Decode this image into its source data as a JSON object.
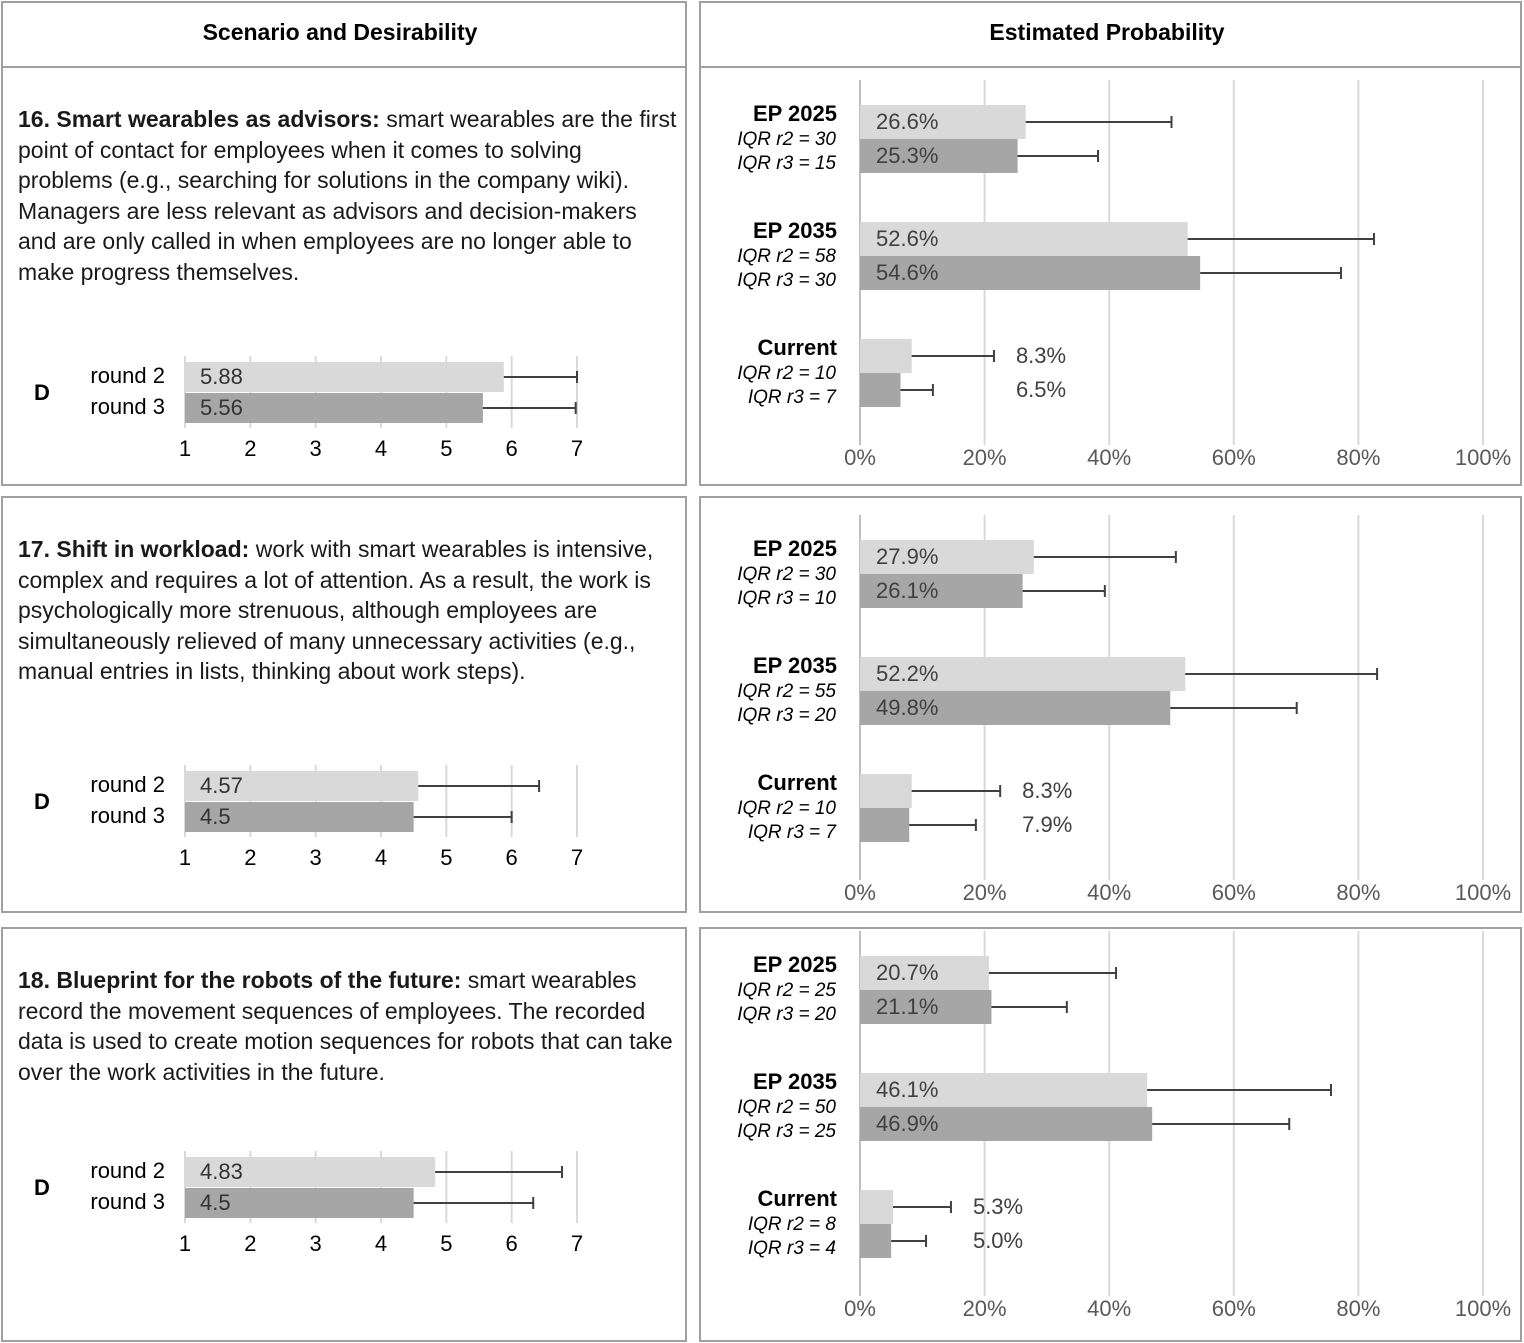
{
  "table": {
    "headers": [
      "Scenario and Desirability",
      "Estimated Probability"
    ],
    "rows": [
      {
        "title": "16. Smart wearables as advisors:",
        "text": "smart wearables are the first point of contact for employees when it comes to solving problems (e.g., searching for solutions in the company wiki). Managers are less relevant as advisors and decision-makers and are only called in when employees are no longer able to make progress themselves."
      },
      {
        "title": "17. Shift in workload:",
        "text": "work with smart wearables is intensive, complex and requires a lot of attention. As a result, the work is psychologically more strenuous, although employees are simultaneously relieved of many unnecessary activities (e.g., manual entries in lists, thinking about work steps)."
      },
      {
        "title": "18. Blueprint for the robots of the future:",
        "text": "smart wearables record the movement sequences of employees. The recorded data is used to create motion sequences for robots that can take over the work activities in the future."
      }
    ]
  },
  "chart_data": [
    {
      "type": "desirability",
      "categories": [
        "D"
      ],
      "series": [
        {
          "name": "round 2",
          "color": "#d9d9d9",
          "values": [
            5.88
          ],
          "errors": [
            1.12
          ]
        },
        {
          "name": "round 3",
          "color": "#a6a6a6",
          "values": [
            5.56
          ],
          "errors": [
            1.42
          ]
        }
      ],
      "xlim": [
        1,
        7
      ],
      "xticks": [
        1,
        2,
        3,
        4,
        5,
        6,
        7
      ],
      "grid": true
    },
    {
      "type": "probability",
      "categories": [
        "EP 2025",
        "EP 2035",
        "Current"
      ],
      "category_notes": [
        [
          "IQR r2 = 30",
          "IQR r3 = 15"
        ],
        [
          "IQR r2 = 58",
          "IQR r3 = 30"
        ],
        [
          "IQR r2 = 10",
          "IQR r3 = 7"
        ]
      ],
      "series": [
        {
          "color": "#d9d9d9",
          "values": [
            26.6,
            52.6,
            8.3
          ],
          "value_labels": [
            "26.6%",
            "52.6%",
            "8.3%"
          ],
          "errors": [
            23.4,
            29.9,
            13.2
          ]
        },
        {
          "color": "#a6a6a6",
          "values": [
            25.3,
            54.6,
            6.5
          ],
          "value_labels": [
            "25.3%",
            "54.6%",
            "6.5%"
          ],
          "errors": [
            12.9,
            22.6,
            5.2
          ]
        }
      ],
      "xlim": [
        0,
        100
      ],
      "xticks": [
        {
          "value": 0,
          "label": "0%"
        },
        {
          "value": 20,
          "label": "20%"
        },
        {
          "value": 40,
          "label": "40%"
        },
        {
          "value": 60,
          "label": "60%"
        },
        {
          "value": 80,
          "label": "80%"
        },
        {
          "value": 100,
          "label": "100%"
        }
      ],
      "grid": true
    },
    {
      "type": "desirability",
      "categories": [
        "D"
      ],
      "series": [
        {
          "name": "round 2",
          "color": "#d9d9d9",
          "values": [
            4.57
          ],
          "errors": [
            1.85
          ]
        },
        {
          "name": "round 3",
          "color": "#a6a6a6",
          "values": [
            4.5
          ],
          "errors": [
            1.5
          ]
        }
      ],
      "xlim": [
        1,
        7
      ],
      "xticks": [
        1,
        2,
        3,
        4,
        5,
        6,
        7
      ],
      "grid": true
    },
    {
      "type": "probability",
      "categories": [
        "EP 2025",
        "EP 2035",
        "Current"
      ],
      "category_notes": [
        [
          "IQR r2 = 30",
          "IQR r3 = 10"
        ],
        [
          "IQR r2 = 55",
          "IQR r3 = 20"
        ],
        [
          "IQR r2 = 10",
          "IQR r3 = 7"
        ]
      ],
      "series": [
        {
          "color": "#d9d9d9",
          "values": [
            27.9,
            52.2,
            8.3
          ],
          "value_labels": [
            "27.9%",
            "52.2%",
            "8.3%"
          ],
          "errors": [
            22.8,
            30.8,
            14.2
          ]
        },
        {
          "color": "#a6a6a6",
          "values": [
            26.1,
            49.8,
            7.9
          ],
          "value_labels": [
            "26.1%",
            "49.8%",
            "7.9%"
          ],
          "errors": [
            13.2,
            20.3,
            10.7
          ]
        }
      ],
      "xlim": [
        0,
        100
      ],
      "xticks": [
        {
          "value": 0,
          "label": "0%"
        },
        {
          "value": 20,
          "label": "20%"
        },
        {
          "value": 40,
          "label": "40%"
        },
        {
          "value": 60,
          "label": "60%"
        },
        {
          "value": 80,
          "label": "80%"
        },
        {
          "value": 100,
          "label": "100%"
        }
      ],
      "grid": true
    },
    {
      "type": "desirability",
      "categories": [
        "D"
      ],
      "series": [
        {
          "name": "round 2",
          "color": "#d9d9d9",
          "values": [
            4.83
          ],
          "errors": [
            1.94
          ]
        },
        {
          "name": "round 3",
          "color": "#a6a6a6",
          "values": [
            4.5
          ],
          "errors": [
            1.83
          ]
        }
      ],
      "xlim": [
        1,
        7
      ],
      "xticks": [
        1,
        2,
        3,
        4,
        5,
        6,
        7
      ],
      "grid": true
    },
    {
      "type": "probability",
      "categories": [
        "EP 2025",
        "EP 2035",
        "Current"
      ],
      "category_notes": [
        [
          "IQR r2 = 25",
          "IQR r3 = 20"
        ],
        [
          "IQR r2 = 50",
          "IQR r3 = 25"
        ],
        [
          "IQR r2 = 8",
          "IQR r3 = 4"
        ]
      ],
      "series": [
        {
          "color": "#d9d9d9",
          "values": [
            20.7,
            46.1,
            5.3
          ],
          "value_labels": [
            "20.7%",
            "46.1%",
            "5.3%"
          ],
          "errors": [
            20.4,
            29.5,
            9.3
          ]
        },
        {
          "color": "#a6a6a6",
          "values": [
            21.1,
            46.9,
            5.0
          ],
          "value_labels": [
            "21.1%",
            "46.9%",
            "5.0%"
          ],
          "errors": [
            12.1,
            22.0,
            5.6
          ]
        }
      ],
      "xlim": [
        0,
        100
      ],
      "xticks": [
        {
          "value": 0,
          "label": "0%"
        },
        {
          "value": 20,
          "label": "20%"
        },
        {
          "value": 40,
          "label": "40%"
        },
        {
          "value": 60,
          "label": "60%"
        },
        {
          "value": 80,
          "label": "80%"
        },
        {
          "value": 100,
          "label": "100%"
        }
      ],
      "grid": true
    }
  ]
}
